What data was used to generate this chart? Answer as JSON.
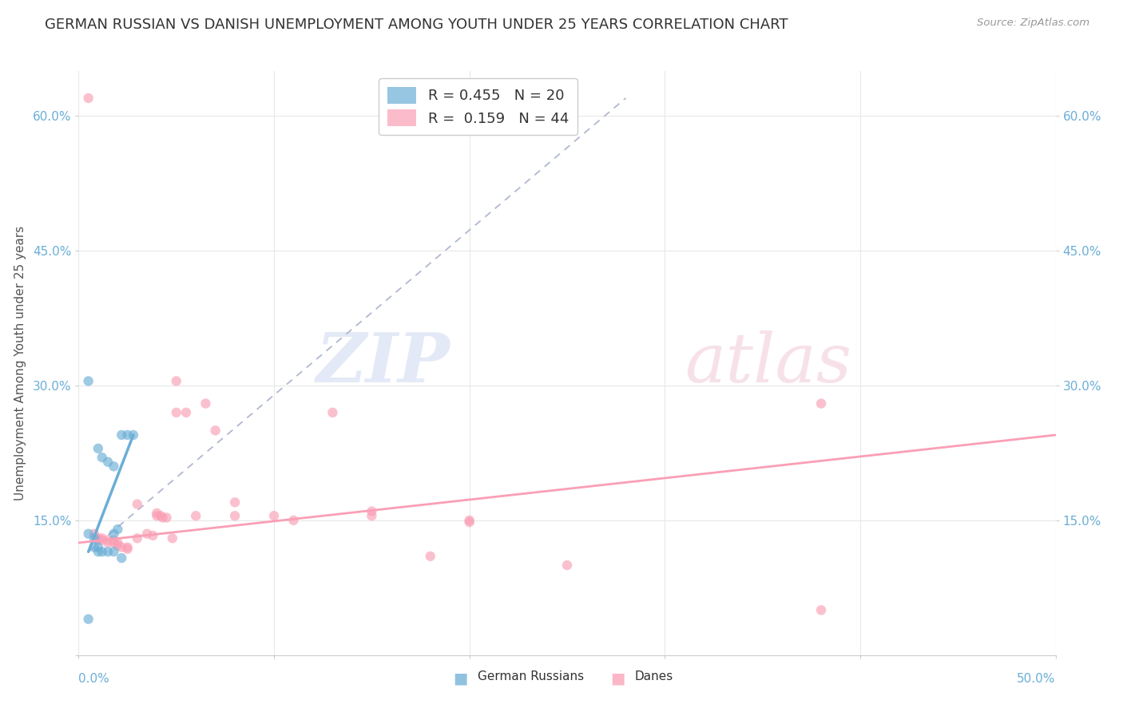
{
  "title": "GERMAN RUSSIAN VS DANISH UNEMPLOYMENT AMONG YOUTH UNDER 25 YEARS CORRELATION CHART",
  "source": "Source: ZipAtlas.com",
  "ylabel": "Unemployment Among Youth under 25 years",
  "xlim": [
    0.0,
    0.5
  ],
  "ylim": [
    0.0,
    0.65
  ],
  "yticks": [
    0.0,
    0.15,
    0.3,
    0.45,
    0.6
  ],
  "yticklabels_left": [
    "",
    "15.0%",
    "30.0%",
    "45.0%",
    "60.0%"
  ],
  "yticklabels_right": [
    "15.0%",
    "30.0%",
    "45.0%",
    "60.0%"
  ],
  "right_yticks": [
    0.15,
    0.3,
    0.45,
    0.6
  ],
  "legend_r_blue": "R = 0.455",
  "legend_n_blue": "N = 20",
  "legend_r_pink": "R =  0.159",
  "legend_n_pink": "N = 44",
  "blue_color": "#6baed6",
  "pink_color": "#fa9fb5",
  "blue_scatter": [
    [
      0.005,
      0.305
    ],
    [
      0.01,
      0.23
    ],
    [
      0.012,
      0.22
    ],
    [
      0.015,
      0.215
    ],
    [
      0.018,
      0.21
    ],
    [
      0.018,
      0.135
    ],
    [
      0.02,
      0.14
    ],
    [
      0.022,
      0.245
    ],
    [
      0.025,
      0.245
    ],
    [
      0.028,
      0.245
    ],
    [
      0.005,
      0.135
    ],
    [
      0.008,
      0.13
    ],
    [
      0.008,
      0.12
    ],
    [
      0.01,
      0.12
    ],
    [
      0.01,
      0.115
    ],
    [
      0.012,
      0.115
    ],
    [
      0.015,
      0.115
    ],
    [
      0.018,
      0.115
    ],
    [
      0.022,
      0.108
    ],
    [
      0.005,
      0.04
    ]
  ],
  "pink_scatter": [
    [
      0.005,
      0.62
    ],
    [
      0.008,
      0.135
    ],
    [
      0.01,
      0.13
    ],
    [
      0.01,
      0.128
    ],
    [
      0.012,
      0.13
    ],
    [
      0.012,
      0.128
    ],
    [
      0.015,
      0.128
    ],
    [
      0.015,
      0.125
    ],
    [
      0.018,
      0.128
    ],
    [
      0.018,
      0.125
    ],
    [
      0.02,
      0.125
    ],
    [
      0.02,
      0.122
    ],
    [
      0.022,
      0.12
    ],
    [
      0.025,
      0.12
    ],
    [
      0.025,
      0.118
    ],
    [
      0.03,
      0.168
    ],
    [
      0.03,
      0.13
    ],
    [
      0.035,
      0.135
    ],
    [
      0.038,
      0.133
    ],
    [
      0.04,
      0.158
    ],
    [
      0.04,
      0.155
    ],
    [
      0.042,
      0.155
    ],
    [
      0.043,
      0.153
    ],
    [
      0.045,
      0.153
    ],
    [
      0.048,
      0.13
    ],
    [
      0.05,
      0.27
    ],
    [
      0.05,
      0.305
    ],
    [
      0.055,
      0.27
    ],
    [
      0.06,
      0.155
    ],
    [
      0.065,
      0.28
    ],
    [
      0.07,
      0.25
    ],
    [
      0.08,
      0.17
    ],
    [
      0.08,
      0.155
    ],
    [
      0.1,
      0.155
    ],
    [
      0.11,
      0.15
    ],
    [
      0.13,
      0.27
    ],
    [
      0.15,
      0.16
    ],
    [
      0.15,
      0.155
    ],
    [
      0.18,
      0.11
    ],
    [
      0.2,
      0.15
    ],
    [
      0.2,
      0.148
    ],
    [
      0.25,
      0.1
    ],
    [
      0.38,
      0.28
    ],
    [
      0.38,
      0.05
    ]
  ],
  "blue_trendline_solid": [
    [
      0.005,
      0.115
    ],
    [
      0.028,
      0.245
    ]
  ],
  "blue_trendline_dashed": [
    [
      0.005,
      0.115
    ],
    [
      0.28,
      0.62
    ]
  ],
  "pink_trendline": [
    [
      0.0,
      0.125
    ],
    [
      0.5,
      0.245
    ]
  ],
  "background_color": "#ffffff",
  "grid_color": "#e8e8e8",
  "tick_color": "#6baed6",
  "title_fontsize": 13,
  "axis_label_fontsize": 11,
  "tick_fontsize": 11,
  "scatter_size": 80,
  "bottom_legend_x_left": "0.0%",
  "bottom_legend_x_right": "50.0%"
}
